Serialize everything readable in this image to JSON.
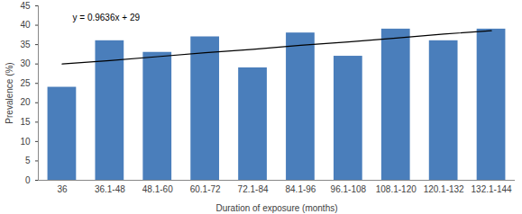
{
  "chart_data": {
    "type": "bar",
    "x_label": "Duration of exposure (months)",
    "y_label": "Prevalence (%)",
    "categories": [
      "36",
      "36.1-48",
      "48.1-60",
      "60.1-72",
      "72.1-84",
      "84.1-96",
      "96.1-108",
      "108.1-120",
      "120.1-132",
      "132.1-144"
    ],
    "values": [
      24,
      36,
      33,
      37,
      29,
      38,
      32,
      39,
      36,
      39
    ],
    "color": "#4a7ebb",
    "trendline_values": [
      30,
      30.9,
      31.9,
      32.9,
      33.8,
      34.8,
      35.7,
      36.7,
      37.7,
      38.6
    ],
    "trendline_color": "#000000",
    "annotation": "y = 0.9636x + 29",
    "ylim": [
      0,
      45
    ],
    "yticks": [
      0,
      5,
      10,
      15,
      20,
      25,
      30,
      35,
      40,
      45
    ],
    "grid": false
  }
}
